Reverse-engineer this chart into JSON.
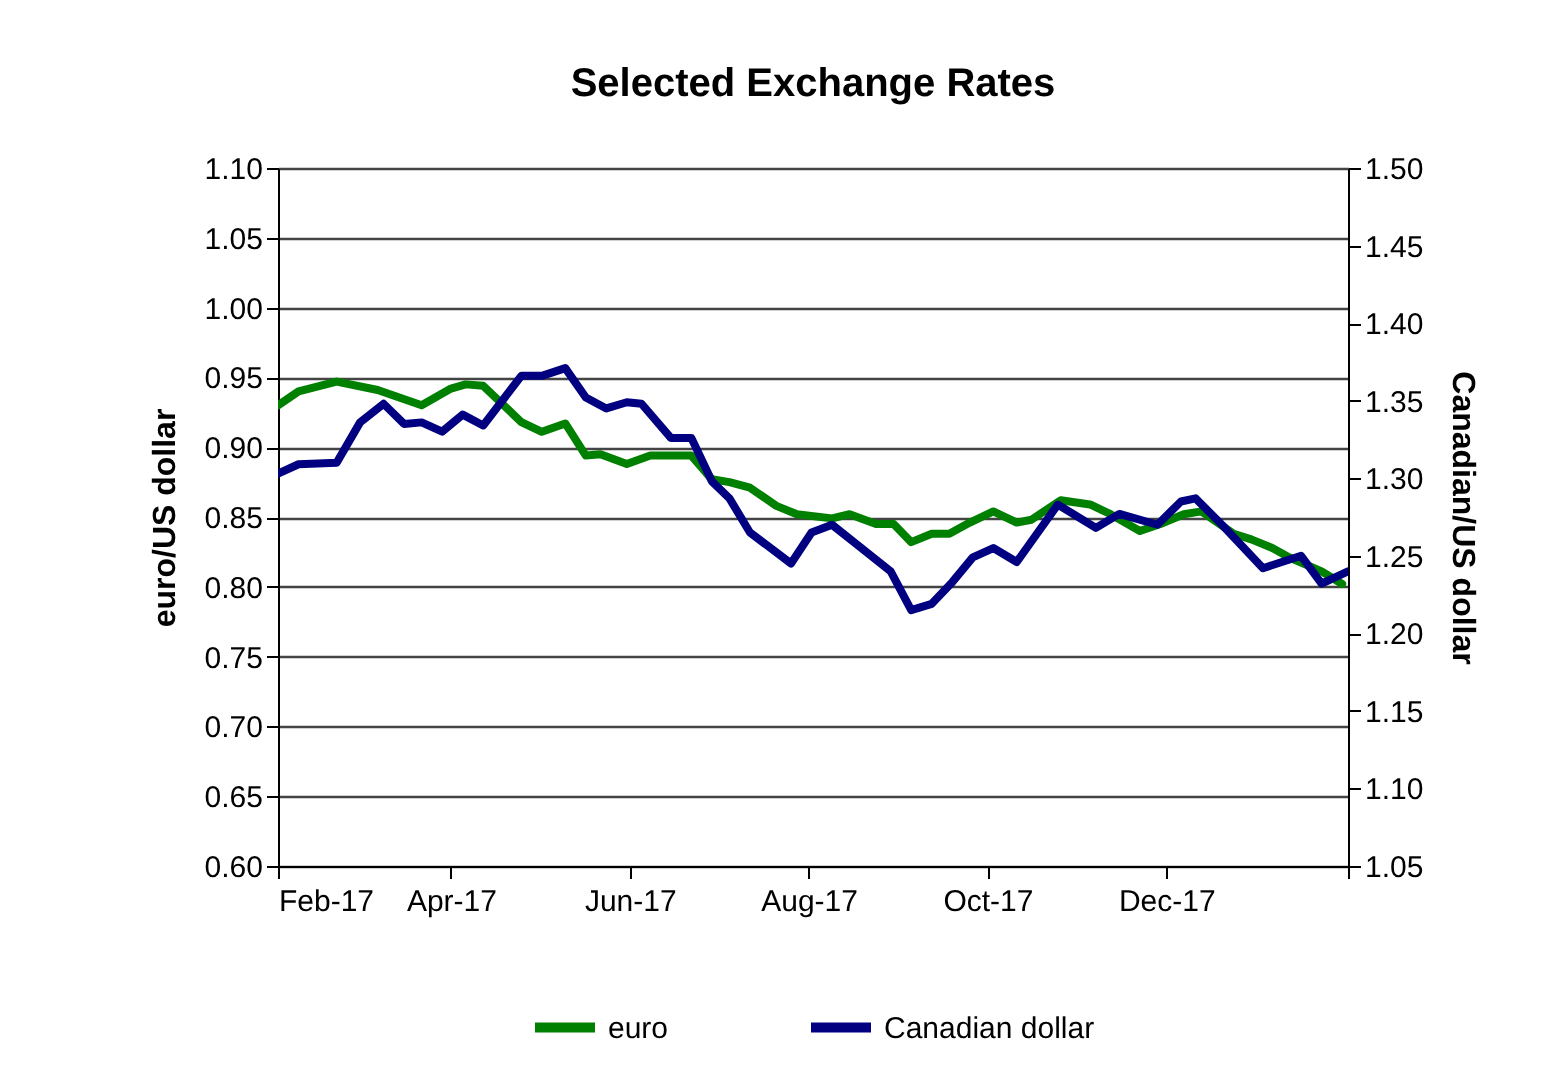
{
  "chart_data": {
    "type": "line",
    "title": "Selected Exchange Rates",
    "ylabel": "euro/US dollar",
    "y2label": "Canadian/US dollar",
    "xlim": [
      "2017-02-01",
      "2018-02-01"
    ],
    "xticks": [
      {
        "value": "2017-02-01",
        "label": "Feb-17"
      },
      {
        "value": "2017-04-01",
        "label": "Apr-17"
      },
      {
        "value": "2017-06-01",
        "label": "Jun-17"
      },
      {
        "value": "2017-08-01",
        "label": "Aug-17"
      },
      {
        "value": "2017-10-01",
        "label": "Oct-17"
      },
      {
        "value": "2017-12-01",
        "label": "Dec-17"
      },
      {
        "value": "2018-02-01",
        "label": null
      }
    ],
    "ylim": [
      0.6,
      1.1
    ],
    "yticks": [
      {
        "value": 0.6,
        "label": "0.60"
      },
      {
        "value": 0.65,
        "label": "0.65"
      },
      {
        "value": 0.7,
        "label": "0.70"
      },
      {
        "value": 0.75,
        "label": "0.75"
      },
      {
        "value": 0.8,
        "label": "0.80"
      },
      {
        "value": 0.85,
        "label": "0.85"
      },
      {
        "value": 0.9,
        "label": "0.90"
      },
      {
        "value": 0.95,
        "label": "0.95"
      },
      {
        "value": 1.0,
        "label": "1.00"
      },
      {
        "value": 1.05,
        "label": "1.05"
      },
      {
        "value": 1.1,
        "label": "1.10"
      }
    ],
    "y2lim": [
      1.05,
      1.5
    ],
    "y2ticks": [
      {
        "value": 1.05,
        "label": "1.05"
      },
      {
        "value": 1.1,
        "label": "1.10"
      },
      {
        "value": 1.15,
        "label": "1.15"
      },
      {
        "value": 1.2,
        "label": "1.20"
      },
      {
        "value": 1.25,
        "label": "1.25"
      },
      {
        "value": 1.3,
        "label": "1.30"
      },
      {
        "value": 1.35,
        "label": "1.35"
      },
      {
        "value": 1.4,
        "label": "1.40"
      },
      {
        "value": 1.45,
        "label": "1.45"
      },
      {
        "value": 1.5,
        "label": "1.50"
      }
    ],
    "grid": "y",
    "legend": "bottom",
    "series": [
      {
        "name": "euro",
        "color": "#008000",
        "x": [
          "2017-02-01",
          "2017-02-08",
          "2017-02-21",
          "2017-03-07",
          "2017-03-22",
          "2017-04-01",
          "2017-04-06",
          "2017-04-12",
          "2017-04-25",
          "2017-05-02",
          "2017-05-10",
          "2017-05-17",
          "2017-05-22",
          "2017-05-31",
          "2017-06-08",
          "2017-06-22",
          "2017-06-29",
          "2017-07-05",
          "2017-07-12",
          "2017-07-21",
          "2017-07-28",
          "2017-08-09",
          "2017-08-15",
          "2017-08-24",
          "2017-08-30",
          "2017-09-05",
          "2017-09-12",
          "2017-09-18",
          "2017-09-25",
          "2017-10-03",
          "2017-10-11",
          "2017-10-16",
          "2017-10-26",
          "2017-11-05",
          "2017-11-12",
          "2017-11-22",
          "2017-11-29",
          "2017-12-07",
          "2017-12-13",
          "2017-12-24",
          "2017-12-30",
          "2018-01-06",
          "2018-01-12",
          "2018-01-23",
          "2018-01-30"
        ],
        "values": [
          0.93,
          0.94,
          0.947,
          0.941,
          0.93,
          0.942,
          0.945,
          0.944,
          0.918,
          0.911,
          0.917,
          0.894,
          0.895,
          0.888,
          0.894,
          0.894,
          0.877,
          0.875,
          0.871,
          0.858,
          0.852,
          0.849,
          0.852,
          0.845,
          0.845,
          0.832,
          0.838,
          0.838,
          0.846,
          0.854,
          0.846,
          0.848,
          0.862,
          0.859,
          0.852,
          0.84,
          0.845,
          0.852,
          0.854,
          0.838,
          0.834,
          0.828,
          0.821,
          0.811,
          0.802
        ]
      },
      {
        "name": "Canadian dollar",
        "color": "#000080",
        "axis": "y2",
        "x": [
          "2017-02-01",
          "2017-02-08",
          "2017-02-21",
          "2017-03-01",
          "2017-03-09",
          "2017-03-16",
          "2017-03-22",
          "2017-03-29",
          "2017-04-05",
          "2017-04-12",
          "2017-04-25",
          "2017-05-02",
          "2017-05-10",
          "2017-05-17",
          "2017-05-24",
          "2017-05-31",
          "2017-06-05",
          "2017-06-15",
          "2017-06-22",
          "2017-06-29",
          "2017-07-05",
          "2017-07-12",
          "2017-07-26",
          "2017-08-02",
          "2017-08-09",
          "2017-08-17",
          "2017-08-29",
          "2017-09-05",
          "2017-09-12",
          "2017-09-19",
          "2017-09-26",
          "2017-10-03",
          "2017-10-11",
          "2017-10-25",
          "2017-11-07",
          "2017-11-15",
          "2017-11-28",
          "2017-12-06",
          "2017-12-11",
          "2017-12-20",
          "2018-01-03",
          "2018-01-16",
          "2018-01-23",
          "2018-02-01"
        ],
        "values": [
          1.303,
          1.309,
          1.31,
          1.336,
          1.348,
          1.335,
          1.336,
          1.33,
          1.341,
          1.334,
          1.366,
          1.366,
          1.371,
          1.352,
          1.345,
          1.349,
          1.348,
          1.326,
          1.326,
          1.298,
          1.287,
          1.265,
          1.245,
          1.265,
          1.27,
          1.258,
          1.24,
          1.215,
          1.219,
          1.233,
          1.249,
          1.255,
          1.246,
          1.283,
          1.268,
          1.277,
          1.27,
          1.285,
          1.287,
          1.27,
          1.242,
          1.25,
          1.232,
          1.24
        ]
      }
    ]
  }
}
